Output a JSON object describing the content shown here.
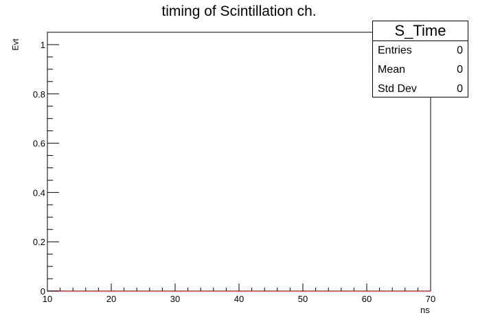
{
  "chart_data": {
    "type": "bar",
    "title": "timing of Scintillation ch.",
    "xlabel": "ns",
    "ylabel": "Evt",
    "xlim": [
      10,
      70
    ],
    "ylim": [
      0,
      1.05
    ],
    "x_ticks": [
      "10",
      "20",
      "30",
      "40",
      "50",
      "60",
      "70"
    ],
    "y_ticks": [
      "0",
      "0.2",
      "0.4",
      "0.6",
      "0.8",
      "1"
    ],
    "values": [],
    "line_color": "#d62728",
    "grid": false,
    "stats": {
      "name": "S_Time",
      "rows": [
        {
          "label": "Entries",
          "value": "0"
        },
        {
          "label": "Mean",
          "value": "0"
        },
        {
          "label": "Std Dev",
          "value": "0"
        }
      ]
    }
  }
}
